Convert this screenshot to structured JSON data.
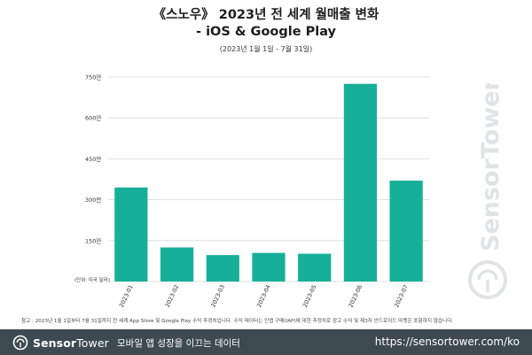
{
  "header": {
    "title_line1": "《스노우》 2023년 전 세계 월매출 변화",
    "title_line2": "- iOS & Google Play",
    "subtitle": "(2023년 1월 1일 - 7월 31일)"
  },
  "chart_data": {
    "type": "bar",
    "categories": [
      "2023-01",
      "2023-02",
      "2023-03",
      "2023-04",
      "2023-05",
      "2023-06",
      "2023-07"
    ],
    "values": [
      3450000,
      1250000,
      970000,
      1050000,
      1020000,
      7250000,
      3700000
    ],
    "ylim": [
      0,
      7500000
    ],
    "yticks": [
      {
        "value": 1500000,
        "label": "150만"
      },
      {
        "value": 3000000,
        "label": "300만"
      },
      {
        "value": 4500000,
        "label": "450만"
      },
      {
        "value": 6000000,
        "label": "600만"
      },
      {
        "value": 7500000,
        "label": "750만"
      }
    ],
    "unit_note": "(단위: 미국 달러)",
    "bar_color": "#16b09a",
    "grid": true,
    "legend": false
  },
  "footnote": "참고 : 2023년 1월 1일부터 7월 31일까지 전 세계 App Store 및 Google Play 수익 추정치입니다. 수익 데이터는 인앱 구매(IAP)에 대한 추정치로 광고 수익 및 제3자 안드로이드 마켓은 포함하지 않습니다.",
  "footer": {
    "brand_bold": "Sensor",
    "brand_light": "Tower",
    "slogan": "모바일 앱 성장을 이끄는 데이터",
    "url": "https://sensortower.com/ko",
    "background_color": "#3e4a52"
  },
  "watermark": {
    "text": "SensorTower",
    "icon": "sensor-tower-logo-icon"
  }
}
